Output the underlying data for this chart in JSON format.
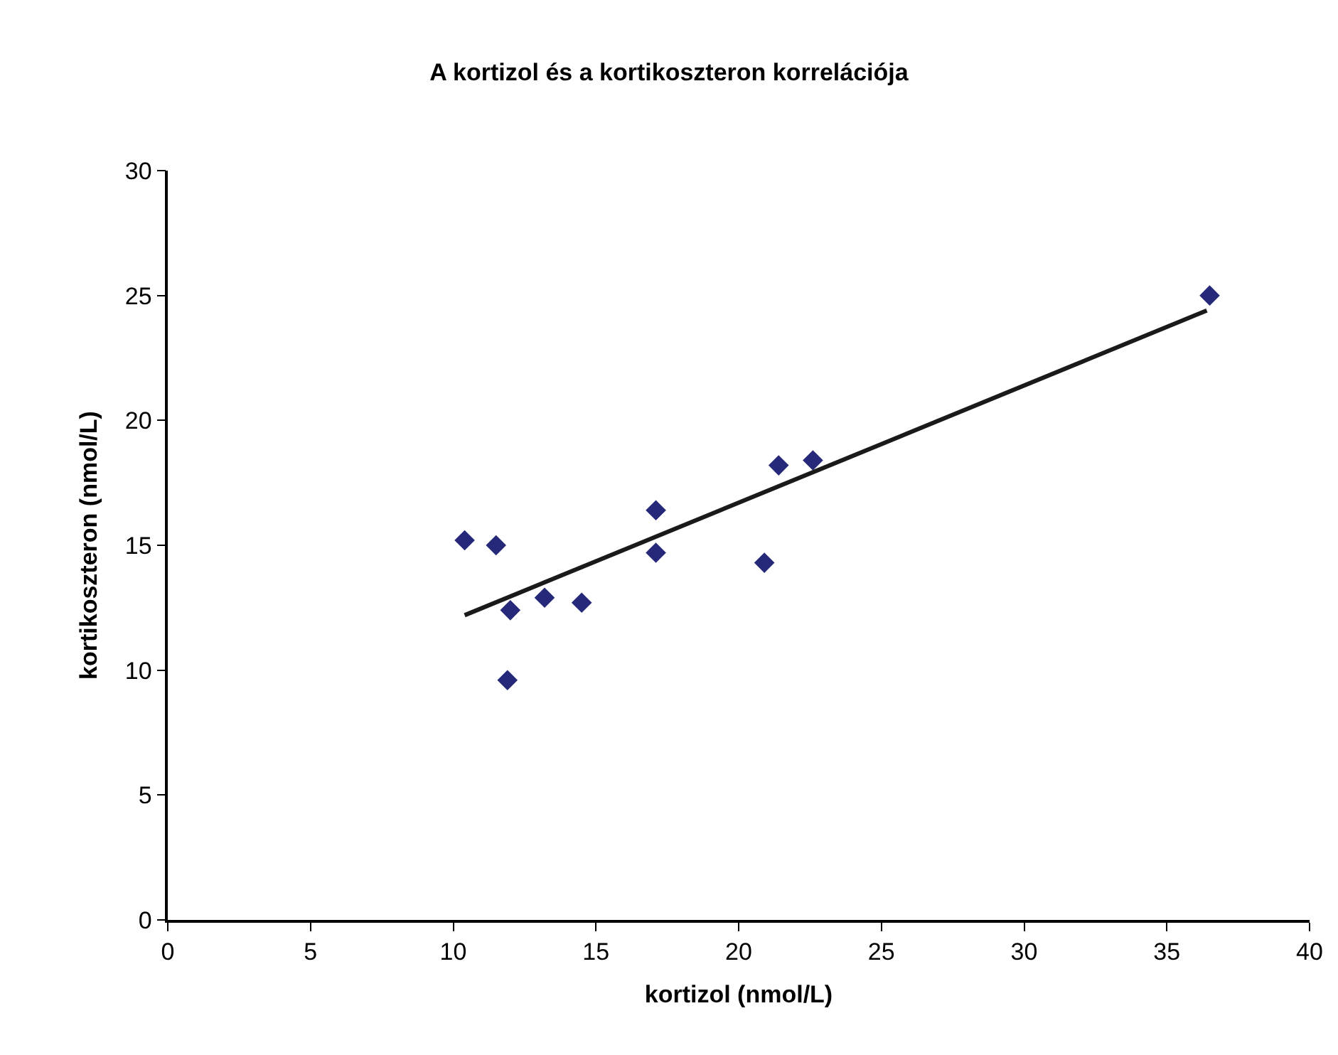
{
  "chart_data": {
    "type": "scatter",
    "title": "A kortizol és a kortikoszteron korrelációja",
    "xlabel": "kortizol (nmol/L)",
    "ylabel": "kortikoszteron (nmol/L)",
    "xlim": [
      0,
      40
    ],
    "xticks": [
      0,
      5,
      10,
      15,
      20,
      25,
      30,
      35,
      40
    ],
    "ylim": [
      0,
      30
    ],
    "yticks": [
      0,
      5,
      10,
      15,
      20,
      25,
      30
    ],
    "legend": false,
    "marker": "diamond",
    "series": [
      {
        "color": "#26297a",
        "x": [
          10.4,
          11.5,
          12.0,
          11.9,
          13.2,
          14.5,
          17.1,
          17.1,
          20.9,
          21.4,
          22.6,
          36.5
        ],
        "values": [
          15.2,
          15.0,
          12.4,
          9.6,
          12.9,
          12.7,
          16.4,
          14.7,
          14.3,
          18.2,
          18.4,
          25.0
        ]
      },
      {
        "type": "line",
        "color": "#1a1a1a",
        "line_style": "solid",
        "marker": "none",
        "x": [
          10.4,
          36.4
        ],
        "values": [
          12.2,
          24.4
        ]
      }
    ]
  }
}
